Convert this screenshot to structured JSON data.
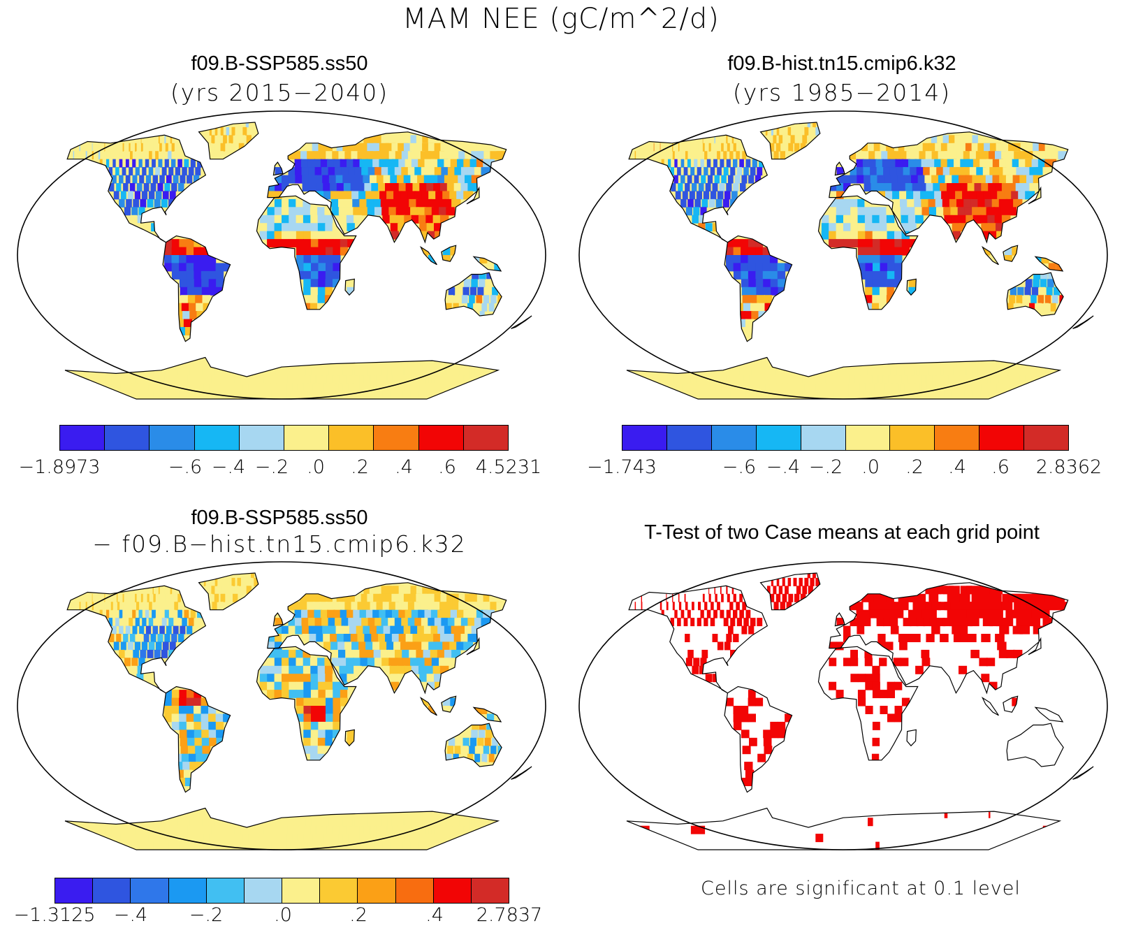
{
  "title": "MAM NEE (gC/m^2/d)",
  "palette10": [
    "#3a1cf0",
    "#2f55e0",
    "#2a8ce8",
    "#16b7f4",
    "#a7d7f1",
    "#fbf08c",
    "#fbbf28",
    "#f87d12",
    "#f20505",
    "#d32b27"
  ],
  "palette12": [
    "#3a1cf0",
    "#2f55e0",
    "#2f77ea",
    "#1b99f2",
    "#41bff2",
    "#a7d7f1",
    "#fbf08c",
    "#fbca33",
    "#fba016",
    "#f86d10",
    "#f20505",
    "#d32b27"
  ],
  "land_color": "#fbf08c",
  "significance_color": "#f20505",
  "panels": [
    {
      "id": "case1",
      "title": "f09.B-SSP585.ss50",
      "subtitle": "(yrs 2015−2040)",
      "colorbar_ticks": [
        "−1.8973",
        "−.6",
        "−.4",
        "−.2",
        ".0",
        ".2",
        ".4",
        ".6",
        "4.5231"
      ],
      "colorbar_range": [
        -1.8973,
        4.5231
      ],
      "colorbar_levels": [
        -0.6,
        -0.4,
        -0.2,
        0.0,
        0.2,
        0.4,
        0.6
      ]
    },
    {
      "id": "case2",
      "title": "f09.B-hist.tn15.cmip6.k32",
      "subtitle": "(yrs 1985−2014)",
      "colorbar_ticks": [
        "−1.743",
        "−.6",
        "−.4",
        "−.2",
        ".0",
        ".2",
        ".4",
        ".6",
        "2.8362"
      ],
      "colorbar_range": [
        -1.743,
        2.8362
      ],
      "colorbar_levels": [
        -0.6,
        -0.4,
        -0.2,
        0.0,
        0.2,
        0.4,
        0.6
      ]
    },
    {
      "id": "diff",
      "title": "f09.B-SSP585.ss50",
      "subtitle": "− f09.B−hist.tn15.cmip6.k32",
      "colorbar_ticks": [
        "−1.3125",
        "−.4",
        "−.2",
        ".0",
        ".2",
        ".4",
        "2.7837"
      ],
      "colorbar_range": [
        -1.3125,
        2.7837
      ],
      "colorbar_levels": [
        -0.4,
        -0.2,
        0.0,
        0.2,
        0.4
      ]
    },
    {
      "id": "ttest",
      "title": "T-Test of two Case means at each grid point",
      "note": "Cells are significant at 0.1 level"
    }
  ]
}
